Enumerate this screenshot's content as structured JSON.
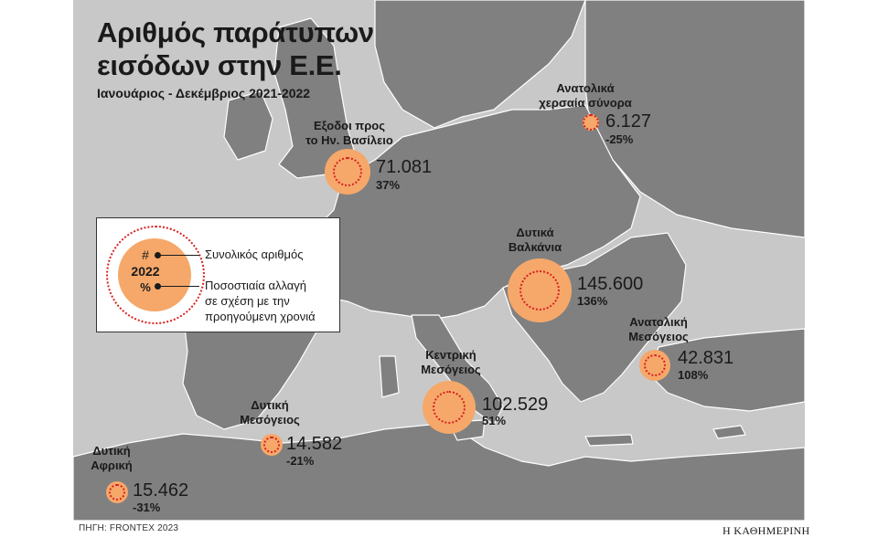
{
  "title_line1": "Αριθμός παράτυπων",
  "title_line2": "εισόδων στην Ε.Ε.",
  "subtitle": "Ιανουάριος - Δεκέμβριος 2021-2022",
  "legend": {
    "hash": "#",
    "year": "2022",
    "pct": "%",
    "total_label": "Συνολικός αριθμός",
    "change_line1": "Ποσοστιαία αλλαγή",
    "change_line2": "σε σχέση με την",
    "change_line3": "προηγούμενη χρονιά"
  },
  "routes": {
    "uk": {
      "name1": "Εξοδοι προς",
      "name2": "το Ην. Βασίλειο",
      "value": "71.081",
      "change": "37%"
    },
    "eastern_land": {
      "name1": "Ανατολικά",
      "name2": "χερσαία σύνορα",
      "value": "6.127",
      "change": "-25%"
    },
    "balkans": {
      "name1": "Δυτικά",
      "name2": "Βαλκάνια",
      "value": "145.600",
      "change": "136%"
    },
    "eastern_med": {
      "name1": "Ανατολική",
      "name2": "Μεσόγειος",
      "value": "42.831",
      "change": "108%"
    },
    "central_med": {
      "name1": "Κεντρική",
      "name2": "Μεσόγειος",
      "value": "102.529",
      "change": "51%"
    },
    "western_med": {
      "name1": "Δυτική",
      "name2": "Μεσόγειος",
      "value": "14.582",
      "change": "-21%"
    },
    "west_africa": {
      "name1": "Δυτική",
      "name2": "Αφρική",
      "value": "15.462",
      "change": "-31%"
    }
  },
  "source": "ΠΗΓΗ: FRONTEX 2023",
  "brand": "Η ΚΑΘΗΜΕΡΙΝΗ",
  "colors": {
    "sea": "#c8c8c8",
    "land": "#808080",
    "bubble": "#f5a86a",
    "ring": "#d92020"
  }
}
